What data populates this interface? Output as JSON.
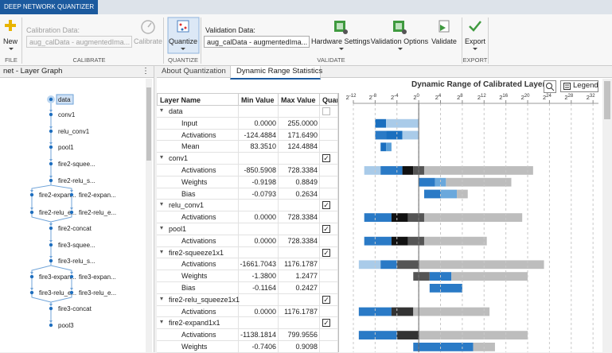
{
  "app_title": "DEEP NETWORK QUANTIZER",
  "toolbar": {
    "new": "New",
    "calibration_data_label": "Calibration Data:",
    "calibration_data_value": "aug_calData - augmentedIma...",
    "calibrate": "Calibrate",
    "quantize": "Quantize",
    "validation_data_label": "Validation Data:",
    "validation_data_value": "aug_calData - augmentedIma...",
    "hardware_settings": "Hardware Settings",
    "validation_options": "Validation Options",
    "validate": "Validate",
    "export": "Export",
    "sections": [
      "FILE",
      "CALIBRATE",
      "QUANTIZE",
      "VALIDATE",
      "EXPORT"
    ]
  },
  "layer_graph": {
    "title": "net - Layer Graph",
    "nodes": [
      "data",
      "conv1",
      "relu_conv1",
      "pool1",
      "fire2-squee...",
      "fire2-relu_s...",
      "fire2-expan...",
      "fire2-expan...",
      "fire2-relu_e...",
      "fire2-relu_e...",
      "fire2-concat",
      "fire3-squee...",
      "fire3-relu_s...",
      "fire3-expan...",
      "fire3-expan...",
      "fire3-relu_e...",
      "fire3-relu_e...",
      "fire3-concat",
      "pool3"
    ]
  },
  "tabs": [
    "About Quantization",
    "Dynamic Range Statistics"
  ],
  "table": {
    "headers": [
      "Layer Name",
      "Min Value",
      "Max Value",
      "Quar"
    ],
    "rows": [
      {
        "name": "data",
        "group": true,
        "checked": false
      },
      {
        "name": "Input",
        "min": "0.0000",
        "max": "255.0000",
        "heat": [
          {
            "from": -8,
            "to": -6,
            "color": "#1a6fbf"
          },
          {
            "from": -6,
            "to": 0,
            "color": "#a9cbe9"
          }
        ]
      },
      {
        "name": "Activations",
        "min": "-124.4884",
        "max": "171.6490",
        "heat": [
          {
            "from": -8,
            "to": -6,
            "color": "#2a7ac6"
          },
          {
            "from": -6,
            "to": -3,
            "color": "#1a6fbf"
          },
          {
            "from": -3,
            "to": 0,
            "color": "#a9cbe9"
          }
        ]
      },
      {
        "name": "Mean",
        "min": "83.3510",
        "max": "124.4884",
        "heat": [
          {
            "from": -7,
            "to": -6,
            "color": "#1a6fbf"
          },
          {
            "from": -6,
            "to": -5,
            "color": "#5a9fd8"
          }
        ]
      },
      {
        "name": "conv1",
        "group": true,
        "checked": true
      },
      {
        "name": "Activations",
        "min": "-850.5908",
        "max": "728.3384",
        "heat": [
          {
            "from": -10,
            "to": -7,
            "color": "#a9cbe9"
          },
          {
            "from": -7,
            "to": -3,
            "color": "#2a7ac6"
          },
          {
            "from": -3,
            "to": -1,
            "color": "#111111"
          },
          {
            "from": -1,
            "to": 1,
            "color": "#555555"
          },
          {
            "from": 1,
            "to": 21,
            "color": "#bdbdbd"
          }
        ]
      },
      {
        "name": "Weights",
        "min": "-0.9198",
        "max": "0.8849",
        "heat": [
          {
            "from": 0,
            "to": 3,
            "color": "#2a7ac6"
          },
          {
            "from": 3,
            "to": 5,
            "color": "#6aa8dc"
          },
          {
            "from": 5,
            "to": 17,
            "color": "#bdbdbd"
          }
        ]
      },
      {
        "name": "Bias",
        "min": "-0.0793",
        "max": "0.2634",
        "heat": [
          {
            "from": 1,
            "to": 4,
            "color": "#2a7ac6"
          },
          {
            "from": 4,
            "to": 7,
            "color": "#6aa8dc"
          },
          {
            "from": 7,
            "to": 9,
            "color": "#bdbdbd"
          }
        ]
      },
      {
        "name": "relu_conv1",
        "group": true,
        "checked": true
      },
      {
        "name": "Activations",
        "min": "0.0000",
        "max": "728.3384",
        "heat": [
          {
            "from": -10,
            "to": -5,
            "color": "#2a7ac6"
          },
          {
            "from": -5,
            "to": -2,
            "color": "#111111"
          },
          {
            "from": -2,
            "to": 1,
            "color": "#555555"
          },
          {
            "from": 1,
            "to": 19,
            "color": "#bdbdbd"
          }
        ]
      },
      {
        "name": "pool1",
        "group": true,
        "checked": true
      },
      {
        "name": "Activations",
        "min": "0.0000",
        "max": "728.3384",
        "heat": [
          {
            "from": -10,
            "to": -5,
            "color": "#2a7ac6"
          },
          {
            "from": -5,
            "to": -2,
            "color": "#111111"
          },
          {
            "from": -2,
            "to": 1,
            "color": "#555555"
          },
          {
            "from": 1,
            "to": 12.5,
            "color": "#bdbdbd"
          }
        ]
      },
      {
        "name": "fire2-squeeze1x1",
        "group": true,
        "checked": true
      },
      {
        "name": "Activations",
        "min": "-1661.7043",
        "max": "1176.1787",
        "heat": [
          {
            "from": -11,
            "to": -7,
            "color": "#a9cbe9"
          },
          {
            "from": -7,
            "to": -4,
            "color": "#2a7ac6"
          },
          {
            "from": -4,
            "to": 0,
            "color": "#555555"
          },
          {
            "from": 0,
            "to": 23,
            "color": "#bdbdbd"
          }
        ]
      },
      {
        "name": "Weights",
        "min": "-1.3800",
        "max": "1.2477",
        "heat": [
          {
            "from": -1,
            "to": 2,
            "color": "#555555"
          },
          {
            "from": 2,
            "to": 6,
            "color": "#2a7ac6"
          },
          {
            "from": 6,
            "to": 20,
            "color": "#bdbdbd"
          }
        ]
      },
      {
        "name": "Bias",
        "min": "-0.1164",
        "max": "0.2427",
        "heat": [
          {
            "from": 2,
            "to": 8,
            "color": "#2a7ac6"
          }
        ]
      },
      {
        "name": "fire2-relu_squeeze1x1",
        "group": true,
        "checked": true
      },
      {
        "name": "Activations",
        "min": "0.0000",
        "max": "1176.1787",
        "heat": [
          {
            "from": -11,
            "to": -5,
            "color": "#2a7ac6"
          },
          {
            "from": -5,
            "to": -1,
            "color": "#333333"
          },
          {
            "from": -1,
            "to": 13,
            "color": "#bdbdbd"
          }
        ]
      },
      {
        "name": "fire2-expand1x1",
        "group": true,
        "checked": true
      },
      {
        "name": "Activations",
        "min": "-1138.1814",
        "max": "799.9556",
        "heat": [
          {
            "from": -11,
            "to": -4,
            "color": "#2a7ac6"
          },
          {
            "from": -4,
            "to": 0,
            "color": "#333333"
          },
          {
            "from": 0,
            "to": 20,
            "color": "#bdbdbd"
          }
        ]
      },
      {
        "name": "Weights",
        "min": "-0.7406",
        "max": "0.9098",
        "heat": [
          {
            "from": -1,
            "to": 10,
            "color": "#2a7ac6"
          },
          {
            "from": 10,
            "to": 14,
            "color": "#bdbdbd"
          }
        ]
      }
    ]
  },
  "chart": {
    "title": "Dynamic Range of Calibrated Layers",
    "legend_button": "Legend",
    "tick_base": "2",
    "xlim": [
      -12,
      33
    ],
    "xticks": [
      -12,
      -8,
      -4,
      0,
      4,
      8,
      12,
      16,
      20,
      24,
      28,
      32
    ],
    "grid": true
  }
}
